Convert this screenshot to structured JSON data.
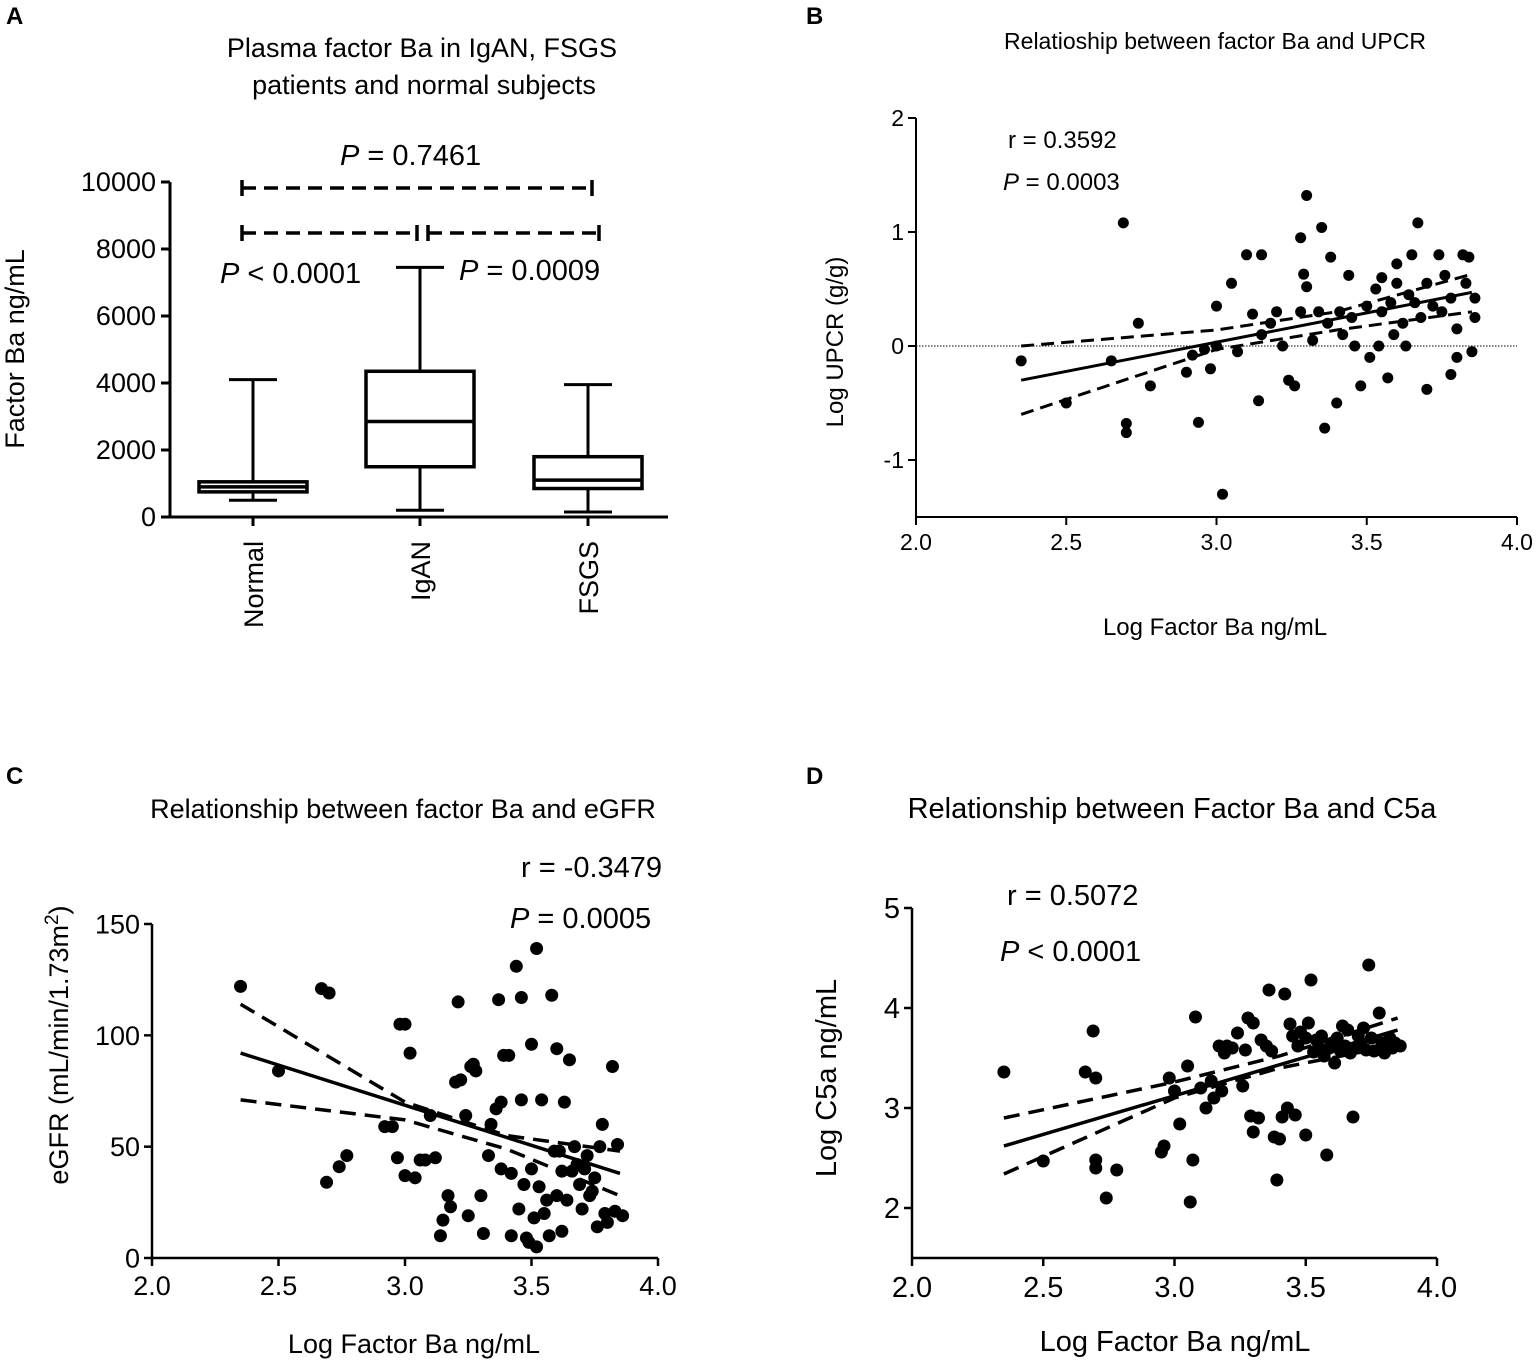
{
  "chart_data": [
    {
      "panel": "A",
      "type": "box",
      "title_lines": [
        "Plasma factor Ba in IgAN, FSGS",
        "patients and normal subjects"
      ],
      "ylabel": "Factor Ba ng/mL",
      "ylim": [
        0,
        10000
      ],
      "yticks": [
        "0",
        "2000",
        "4000",
        "6000",
        "8000",
        "10000"
      ],
      "categories": [
        "Normal",
        "IgAN",
        "FSGS"
      ],
      "boxes": [
        {
          "name": "Normal",
          "min": 500,
          "q1": 750,
          "median": 900,
          "q3": 1050,
          "max": 4100
        },
        {
          "name": "IgAN",
          "min": 200,
          "q1": 1500,
          "median": 2850,
          "q3": 4350,
          "max": 7450
        },
        {
          "name": "FSGS",
          "min": 150,
          "q1": 850,
          "median": 1100,
          "q3": 1800,
          "max": 3950
        }
      ],
      "comparisons": [
        {
          "p_italic": "P",
          "p_rest": " = 0.7461"
        },
        {
          "p_italic": "P",
          "p_rest": " < 0.0001"
        },
        {
          "p_italic": "P",
          "p_rest": " = 0.0009"
        }
      ]
    },
    {
      "panel": "B",
      "type": "scatter",
      "title": "Relatioship between factor Ba and UPCR",
      "xlabel": "Log Factor Ba ng/mL",
      "ylabel": "Log UPCR (g/g)",
      "xlim": [
        2.0,
        4.0
      ],
      "ylim": [
        -1.5,
        2.0
      ],
      "xticks": [
        "2.0",
        "2.5",
        "3.0",
        "3.5",
        "4.0"
      ],
      "yticks": [
        "-1",
        "0",
        "1",
        "2"
      ],
      "stat_r": "r = 0.3592",
      "stat_p_italic": "P",
      "stat_p_rest": " = 0.0003",
      "reference_line_y": 0,
      "fit": {
        "x": [
          2.35,
          3.85
        ],
        "y": [
          -0.3,
          0.47
        ]
      },
      "ci_upper": {
        "x": [
          2.35,
          3.0,
          3.4,
          3.85
        ],
        "y": [
          0.0,
          0.14,
          0.3,
          0.63
        ]
      },
      "ci_lower": {
        "x": [
          2.35,
          3.0,
          3.4,
          3.85
        ],
        "y": [
          -0.6,
          -0.03,
          0.14,
          0.3
        ]
      },
      "points": [
        [
          2.35,
          -0.13
        ],
        [
          2.5,
          -0.5
        ],
        [
          2.65,
          -0.13
        ],
        [
          2.69,
          1.08
        ],
        [
          2.7,
          -0.68
        ],
        [
          2.7,
          -0.76
        ],
        [
          2.74,
          0.2
        ],
        [
          2.78,
          -0.35
        ],
        [
          2.9,
          -0.23
        ],
        [
          2.92,
          -0.08
        ],
        [
          2.94,
          -0.67
        ],
        [
          2.96,
          -0.03
        ],
        [
          2.98,
          -0.2
        ],
        [
          3.0,
          0.0
        ],
        [
          3.0,
          0.35
        ],
        [
          3.02,
          -1.3
        ],
        [
          3.05,
          0.55
        ],
        [
          3.07,
          -0.05
        ],
        [
          3.1,
          0.8
        ],
        [
          3.12,
          0.28
        ],
        [
          3.14,
          -0.48
        ],
        [
          3.15,
          0.8
        ],
        [
          3.15,
          0.1
        ],
        [
          3.18,
          0.2
        ],
        [
          3.2,
          0.3
        ],
        [
          3.22,
          0.0
        ],
        [
          3.24,
          -0.3
        ],
        [
          3.26,
          -0.35
        ],
        [
          3.28,
          0.95
        ],
        [
          3.28,
          0.3
        ],
        [
          3.29,
          0.63
        ],
        [
          3.3,
          1.32
        ],
        [
          3.3,
          0.52
        ],
        [
          3.32,
          0.05
        ],
        [
          3.34,
          0.3
        ],
        [
          3.35,
          1.04
        ],
        [
          3.36,
          -0.72
        ],
        [
          3.37,
          0.2
        ],
        [
          3.38,
          0.78
        ],
        [
          3.4,
          -0.5
        ],
        [
          3.41,
          0.3
        ],
        [
          3.42,
          0.1
        ],
        [
          3.44,
          0.62
        ],
        [
          3.45,
          0.25
        ],
        [
          3.46,
          0.0
        ],
        [
          3.48,
          -0.35
        ],
        [
          3.5,
          0.35
        ],
        [
          3.51,
          -0.1
        ],
        [
          3.53,
          0.5
        ],
        [
          3.54,
          0.0
        ],
        [
          3.55,
          0.6
        ],
        [
          3.55,
          0.3
        ],
        [
          3.57,
          -0.28
        ],
        [
          3.58,
          0.38
        ],
        [
          3.6,
          0.55
        ],
        [
          3.6,
          0.72
        ],
        [
          3.62,
          0.2
        ],
        [
          3.63,
          0.0
        ],
        [
          3.64,
          0.45
        ],
        [
          3.65,
          0.8
        ],
        [
          3.66,
          0.38
        ],
        [
          3.67,
          1.08
        ],
        [
          3.68,
          0.25
        ],
        [
          3.7,
          0.55
        ],
        [
          3.7,
          -0.38
        ],
        [
          3.72,
          0.35
        ],
        [
          3.74,
          0.8
        ],
        [
          3.75,
          0.3
        ],
        [
          3.76,
          0.62
        ],
        [
          3.78,
          -0.25
        ],
        [
          3.78,
          0.42
        ],
        [
          3.8,
          0.15
        ],
        [
          3.82,
          0.8
        ],
        [
          3.83,
          0.55
        ],
        [
          3.84,
          0.78
        ],
        [
          3.85,
          -0.05
        ],
        [
          3.86,
          0.42
        ],
        [
          3.86,
          0.25
        ],
        [
          3.8,
          -0.1
        ],
        [
          3.59,
          0.1
        ]
      ]
    },
    {
      "panel": "C",
      "type": "scatter",
      "title": "Relationship between factor Ba and eGFR",
      "xlabel": "Log Factor Ba ng/mL",
      "ylabel": "eGFR (mL/min/1.73m",
      "ylabel_sup": "2",
      "ylabel_end": ")",
      "xlim": [
        2.0,
        4.0
      ],
      "ylim": [
        0,
        150
      ],
      "xticks": [
        "2.0",
        "2.5",
        "3.0",
        "3.5",
        "4.0"
      ],
      "yticks": [
        "0",
        "50",
        "100",
        "150"
      ],
      "stat_r": "r = -0.3479",
      "stat_p_italic": "P",
      "stat_p_rest": " = 0.0005",
      "fit": {
        "x": [
          2.35,
          3.85
        ],
        "y": [
          92,
          38
        ]
      },
      "ci_upper": {
        "x": [
          2.35,
          3.0,
          3.4,
          3.85
        ],
        "y": [
          114,
          70,
          55,
          48
        ]
      },
      "ci_lower": {
        "x": [
          2.35,
          3.0,
          3.4,
          3.85
        ],
        "y": [
          71,
          62,
          49,
          28
        ]
      },
      "points": [
        [
          2.35,
          122
        ],
        [
          2.5,
          84
        ],
        [
          2.67,
          121
        ],
        [
          2.7,
          119
        ],
        [
          2.69,
          34
        ],
        [
          2.74,
          41
        ],
        [
          2.77,
          46
        ],
        [
          2.92,
          59
        ],
        [
          2.95,
          59
        ],
        [
          2.97,
          45
        ],
        [
          2.98,
          105
        ],
        [
          3.0,
          105
        ],
        [
          3.0,
          37
        ],
        [
          3.02,
          92
        ],
        [
          3.04,
          36
        ],
        [
          3.06,
          44
        ],
        [
          3.08,
          44
        ],
        [
          3.1,
          64
        ],
        [
          3.12,
          45
        ],
        [
          3.14,
          10
        ],
        [
          3.15,
          17
        ],
        [
          3.17,
          28
        ],
        [
          3.18,
          23
        ],
        [
          3.2,
          79
        ],
        [
          3.21,
          115
        ],
        [
          3.22,
          80
        ],
        [
          3.24,
          64
        ],
        [
          3.25,
          19
        ],
        [
          3.26,
          86
        ],
        [
          3.27,
          87
        ],
        [
          3.28,
          84
        ],
        [
          3.3,
          28
        ],
        [
          3.31,
          11
        ],
        [
          3.33,
          46
        ],
        [
          3.34,
          60
        ],
        [
          3.36,
          67
        ],
        [
          3.37,
          116
        ],
        [
          3.38,
          70
        ],
        [
          3.38,
          40
        ],
        [
          3.39,
          91
        ],
        [
          3.41,
          91
        ],
        [
          3.42,
          10
        ],
        [
          3.42,
          38
        ],
        [
          3.44,
          131
        ],
        [
          3.45,
          22
        ],
        [
          3.46,
          117
        ],
        [
          3.46,
          71
        ],
        [
          3.47,
          33
        ],
        [
          3.48,
          9
        ],
        [
          3.49,
          7
        ],
        [
          3.5,
          40
        ],
        [
          3.5,
          96
        ],
        [
          3.51,
          18
        ],
        [
          3.52,
          139
        ],
        [
          3.52,
          5
        ],
        [
          3.53,
          32
        ],
        [
          3.54,
          71
        ],
        [
          3.55,
          20
        ],
        [
          3.56,
          26
        ],
        [
          3.57,
          10
        ],
        [
          3.58,
          118
        ],
        [
          3.59,
          48
        ],
        [
          3.6,
          94
        ],
        [
          3.6,
          28
        ],
        [
          3.61,
          48
        ],
        [
          3.62,
          39
        ],
        [
          3.62,
          12
        ],
        [
          3.63,
          70
        ],
        [
          3.64,
          26
        ],
        [
          3.65,
          89
        ],
        [
          3.66,
          39
        ],
        [
          3.67,
          50
        ],
        [
          3.68,
          42
        ],
        [
          3.69,
          33
        ],
        [
          3.7,
          22
        ],
        [
          3.71,
          40
        ],
        [
          3.72,
          46
        ],
        [
          3.73,
          28
        ],
        [
          3.74,
          30
        ],
        [
          3.75,
          36
        ],
        [
          3.76,
          14
        ],
        [
          3.77,
          50
        ],
        [
          3.78,
          60
        ],
        [
          3.79,
          20
        ],
        [
          3.8,
          16
        ],
        [
          3.82,
          86
        ],
        [
          3.83,
          21
        ],
        [
          3.84,
          51
        ],
        [
          3.86,
          19
        ]
      ]
    },
    {
      "panel": "D",
      "type": "scatter",
      "title": "Relationship between Factor Ba and C5a",
      "xlabel": "Log Factor Ba ng/mL",
      "ylabel": "Log C5a ng/mL",
      "xlim": [
        2.0,
        4.0
      ],
      "ylim": [
        1.5,
        5.0
      ],
      "xticks": [
        "2.0",
        "2.5",
        "3.0",
        "3.5",
        "4.0"
      ],
      "yticks": [
        "2",
        "3",
        "4",
        "5"
      ],
      "stat_r": "r = 0.5072",
      "stat_p_italic": "P",
      "stat_p_rest": " < 0.0001",
      "fit": {
        "x": [
          2.35,
          3.85
        ],
        "y": [
          2.62,
          3.78
        ]
      },
      "ci_upper": {
        "x": [
          2.35,
          3.0,
          3.4,
          3.85
        ],
        "y": [
          2.9,
          3.26,
          3.52,
          3.9
        ]
      },
      "ci_lower": {
        "x": [
          2.35,
          3.0,
          3.4,
          3.85
        ],
        "y": [
          2.34,
          3.1,
          3.4,
          3.63
        ]
      },
      "points": [
        [
          2.35,
          3.36
        ],
        [
          2.5,
          2.47
        ],
        [
          2.66,
          3.36
        ],
        [
          2.69,
          3.77
        ],
        [
          2.7,
          3.3
        ],
        [
          2.7,
          2.4
        ],
        [
          2.7,
          2.48
        ],
        [
          2.74,
          2.1
        ],
        [
          2.78,
          2.38
        ],
        [
          2.95,
          2.56
        ],
        [
          2.96,
          2.62
        ],
        [
          2.98,
          3.3
        ],
        [
          3.0,
          3.17
        ],
        [
          3.02,
          2.84
        ],
        [
          3.05,
          3.42
        ],
        [
          3.06,
          2.06
        ],
        [
          3.07,
          2.48
        ],
        [
          3.08,
          3.91
        ],
        [
          3.1,
          3.2
        ],
        [
          3.12,
          3.0
        ],
        [
          3.14,
          3.27
        ],
        [
          3.15,
          3.1
        ],
        [
          3.17,
          3.62
        ],
        [
          3.18,
          3.17
        ],
        [
          3.19,
          3.55
        ],
        [
          3.2,
          3.62
        ],
        [
          3.22,
          3.6
        ],
        [
          3.24,
          3.75
        ],
        [
          3.26,
          3.22
        ],
        [
          3.27,
          3.58
        ],
        [
          3.28,
          3.9
        ],
        [
          3.29,
          2.92
        ],
        [
          3.3,
          2.76
        ],
        [
          3.3,
          3.85
        ],
        [
          3.32,
          2.9
        ],
        [
          3.33,
          3.68
        ],
        [
          3.35,
          3.62
        ],
        [
          3.36,
          4.18
        ],
        [
          3.37,
          3.57
        ],
        [
          3.38,
          2.71
        ],
        [
          3.39,
          2.28
        ],
        [
          3.4,
          2.69
        ],
        [
          3.41,
          2.91
        ],
        [
          3.42,
          4.14
        ],
        [
          3.43,
          3.0
        ],
        [
          3.44,
          3.84
        ],
        [
          3.45,
          3.72
        ],
        [
          3.46,
          2.93
        ],
        [
          3.47,
          3.62
        ],
        [
          3.48,
          3.76
        ],
        [
          3.5,
          2.73
        ],
        [
          3.5,
          3.7
        ],
        [
          3.51,
          3.85
        ],
        [
          3.52,
          4.28
        ],
        [
          3.53,
          3.56
        ],
        [
          3.54,
          3.68
        ],
        [
          3.55,
          3.6
        ],
        [
          3.56,
          3.72
        ],
        [
          3.57,
          3.52
        ],
        [
          3.58,
          2.53
        ],
        [
          3.59,
          3.6
        ],
        [
          3.6,
          3.65
        ],
        [
          3.61,
          3.45
        ],
        [
          3.62,
          3.7
        ],
        [
          3.63,
          3.58
        ],
        [
          3.64,
          3.82
        ],
        [
          3.65,
          3.62
        ],
        [
          3.66,
          3.78
        ],
        [
          3.67,
          3.55
        ],
        [
          3.68,
          2.91
        ],
        [
          3.69,
          3.6
        ],
        [
          3.7,
          3.72
        ],
        [
          3.71,
          3.65
        ],
        [
          3.72,
          3.8
        ],
        [
          3.73,
          3.58
        ],
        [
          3.74,
          4.43
        ],
        [
          3.75,
          3.7
        ],
        [
          3.76,
          3.57
        ],
        [
          3.78,
          3.95
        ],
        [
          3.79,
          3.65
        ],
        [
          3.8,
          3.55
        ],
        [
          3.82,
          3.7
        ],
        [
          3.83,
          3.6
        ],
        [
          3.84,
          3.65
        ],
        [
          3.86,
          3.62
        ]
      ]
    }
  ]
}
